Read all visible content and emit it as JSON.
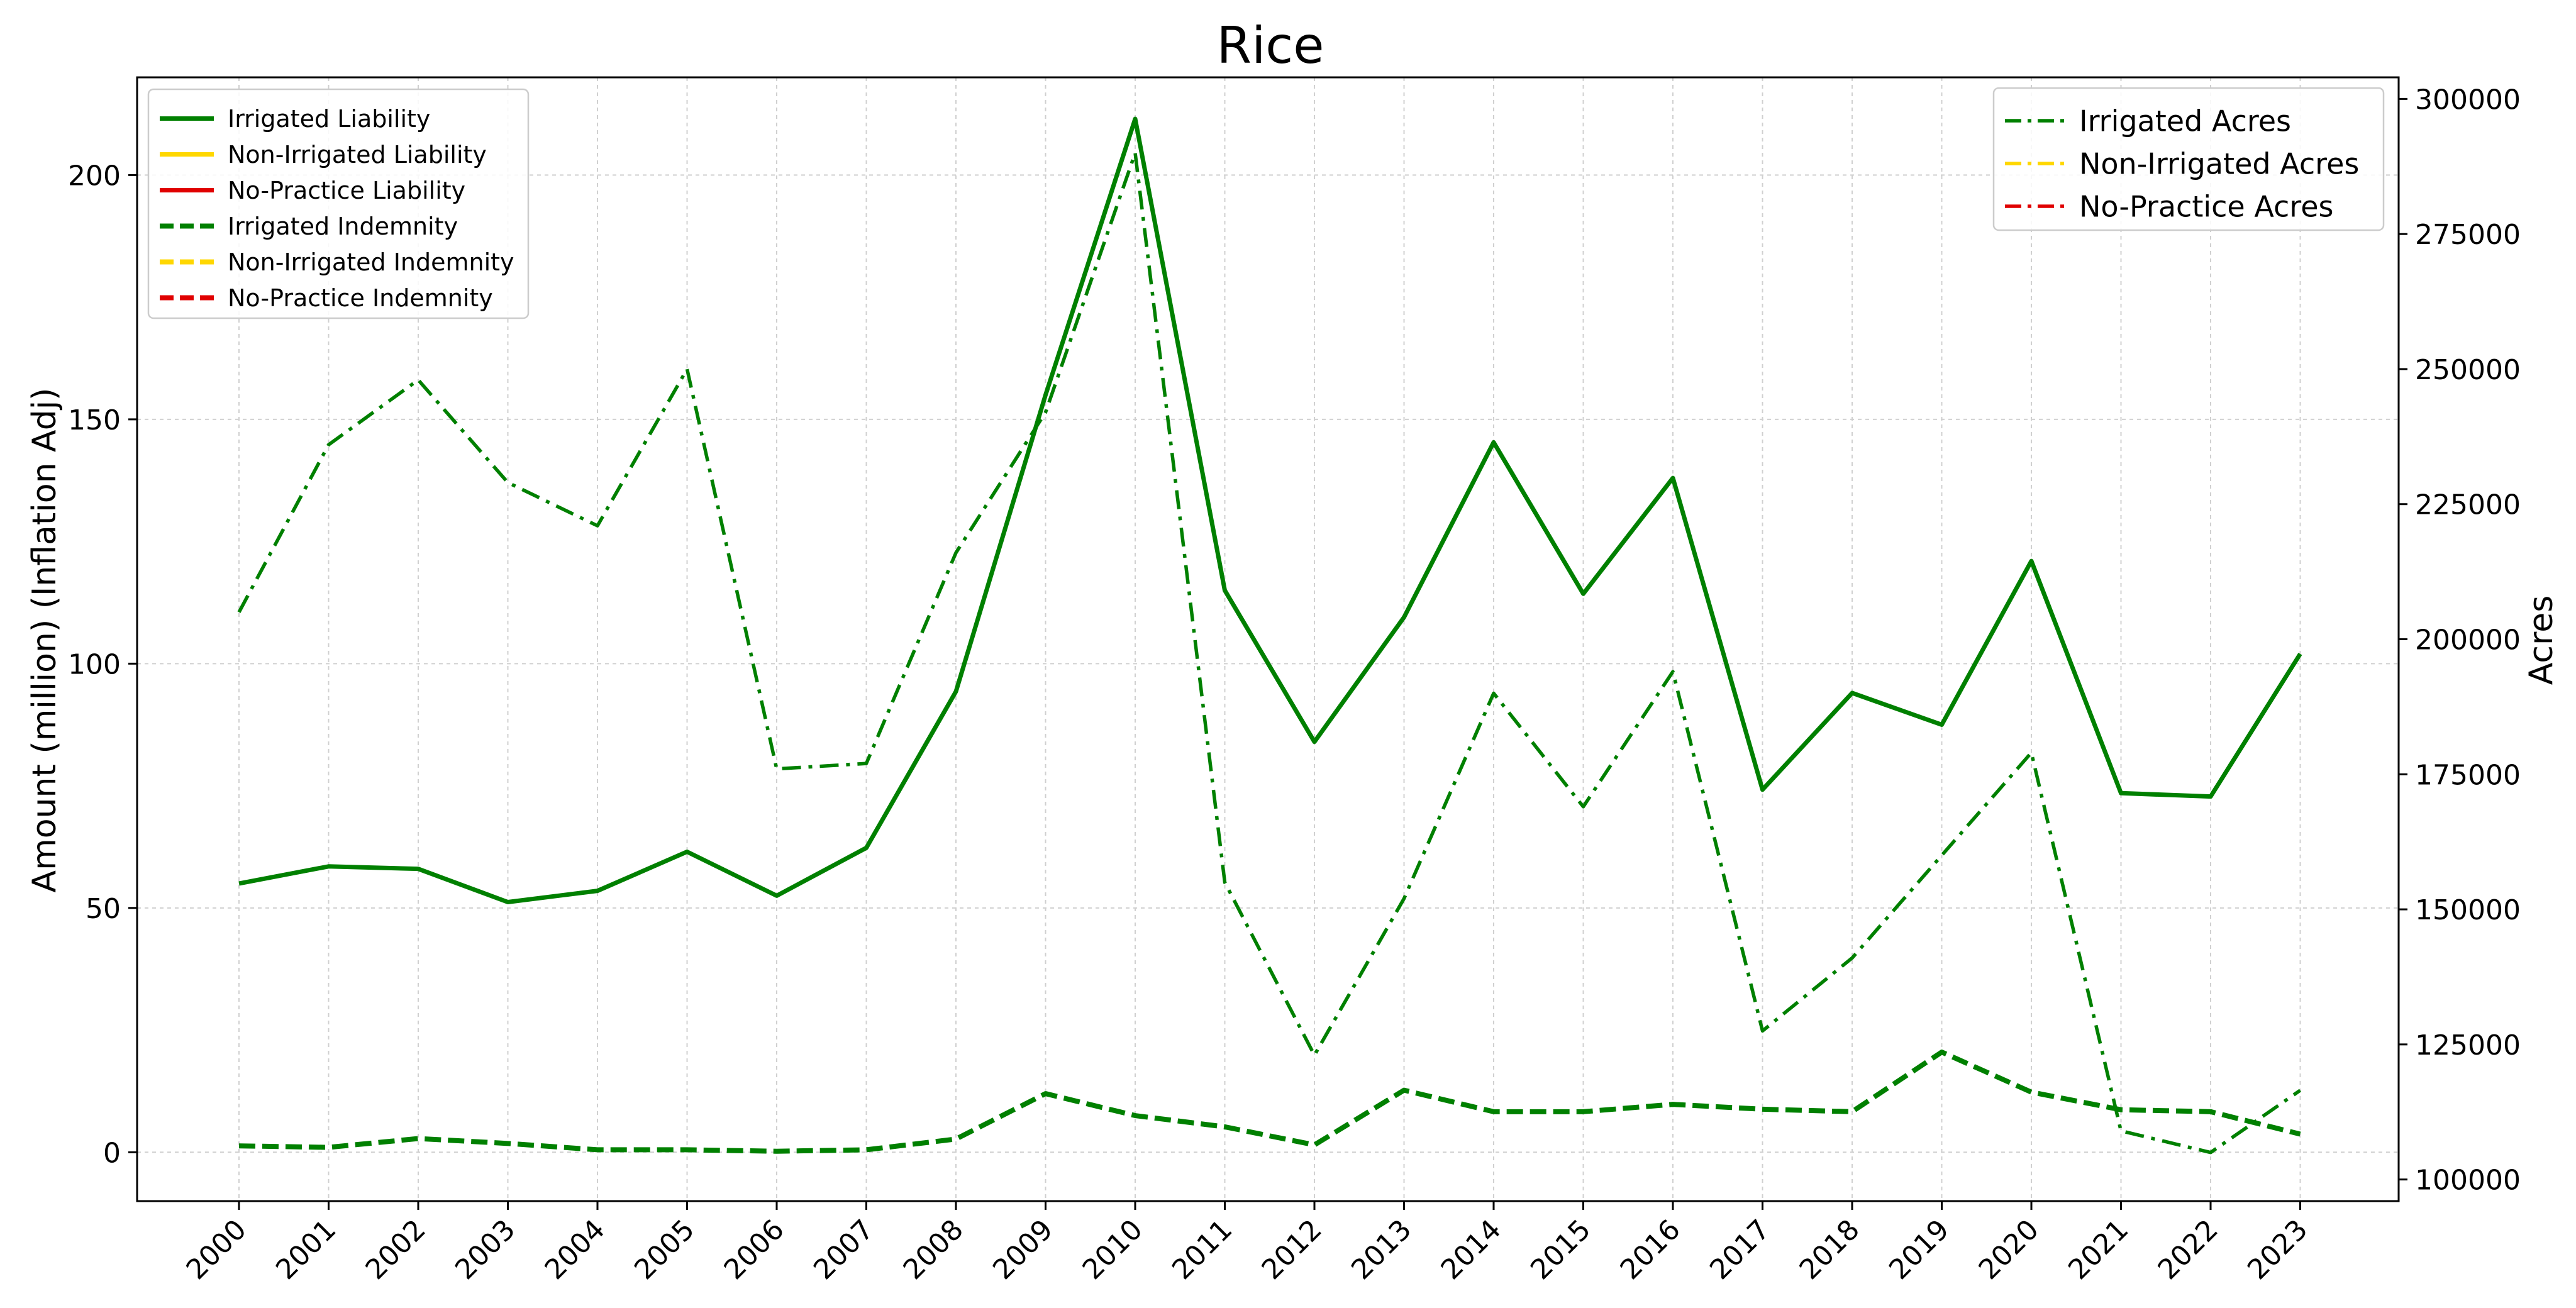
{
  "chart_data": {
    "type": "line",
    "title": "Rice",
    "ylabel": "Amount (million) (Inflation Adj)",
    "y2label": "Acres",
    "ylim": [
      -10,
      220
    ],
    "y2lim": [
      96000,
      304000
    ],
    "yticks": [
      0,
      50,
      100,
      150,
      200
    ],
    "y2ticks": [
      100000,
      125000,
      150000,
      175000,
      200000,
      225000,
      250000,
      275000,
      300000
    ],
    "y2tick_labels": [
      "100000",
      "125000",
      "150000",
      "175000",
      "200000",
      "225000",
      "250000",
      "275000",
      "300000"
    ],
    "grid": true,
    "x": [
      "2000",
      "2001",
      "2002",
      "2003",
      "2004",
      "2005",
      "2006",
      "2007",
      "2008",
      "2009",
      "2010",
      "2011",
      "2012",
      "2013",
      "2014",
      "2015",
      "2016",
      "2017",
      "2018",
      "2019",
      "2020",
      "2021",
      "2022",
      "2023"
    ],
    "colors": {
      "irrigated": "#008000",
      "non_irrigated": "#ffd700",
      "no_practice": "#e00000"
    },
    "legend_left": {
      "placement": "upper-left",
      "entries": [
        {
          "name": "Irrigated Liability",
          "color": "#008000",
          "style": "solid"
        },
        {
          "name": "Non-Irrigated Liability",
          "color": "#ffd700",
          "style": "solid"
        },
        {
          "name": "No-Practice Liability",
          "color": "#e00000",
          "style": "solid"
        },
        {
          "name": "Irrigated Indemnity",
          "color": "#008000",
          "style": "dashed"
        },
        {
          "name": "Non-Irrigated Indemnity",
          "color": "#ffd700",
          "style": "dashed"
        },
        {
          "name": "No-Practice Indemnity",
          "color": "#e00000",
          "style": "dashed"
        }
      ]
    },
    "legend_right": {
      "placement": "upper-right",
      "entries": [
        {
          "name": "Irrigated Acres",
          "color": "#008000",
          "style": "dashdot"
        },
        {
          "name": "Non-Irrigated Acres",
          "color": "#ffd700",
          "style": "dashdot"
        },
        {
          "name": "No-Practice Acres",
          "color": "#e00000",
          "style": "dashdot"
        }
      ]
    },
    "series": [
      {
        "name": "Irrigated Liability",
        "axis": "left",
        "style": "solid",
        "color": "#008000",
        "values": [
          55,
          58.5,
          58,
          51.2,
          53.5,
          61.5,
          52.5,
          62.3,
          94.3,
          155,
          211.5,
          115,
          84,
          109.5,
          145.3,
          114.3,
          138,
          74.2,
          94,
          87.5,
          121,
          73.5,
          72.8,
          102
        ]
      },
      {
        "name": "Irrigated Indemnity",
        "axis": "left",
        "style": "dashed",
        "color": "#008000",
        "values": [
          1.3,
          1,
          2.8,
          1.8,
          0.5,
          0.5,
          0.2,
          0.5,
          2.7,
          12,
          7.5,
          5.2,
          1.5,
          12.7,
          8.3,
          8.3,
          9.8,
          8.8,
          8.3,
          20.5,
          12.3,
          8.7,
          8.3,
          3.7
        ]
      },
      {
        "name": "Irrigated Acres",
        "axis": "right",
        "style": "dashdot",
        "color": "#008000",
        "values": [
          205000,
          236000,
          248000,
          229000,
          221000,
          250000,
          176000,
          177000,
          216000,
          242000,
          290000,
          155000,
          123000,
          152000,
          190000,
          169000,
          194000,
          127500,
          141000,
          160000,
          179000,
          109000,
          105000,
          116500
        ]
      }
    ]
  }
}
